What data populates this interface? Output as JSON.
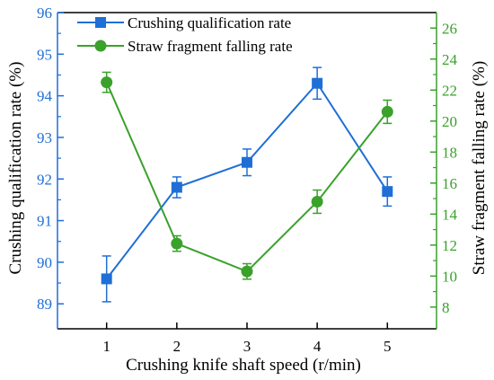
{
  "chart_data": {
    "type": "line",
    "xlabel": "Crushing knife shaft speed (r/min)",
    "ylabel_left": "Crushing qualification rate (%)",
    "ylabel_right": "Straw fragment falling rate (%)",
    "x": [
      1,
      2,
      3,
      4,
      5
    ],
    "x_ticks": [
      "1",
      "2",
      "3",
      "4",
      "5"
    ],
    "xlim": [
      0.3,
      5.7
    ],
    "ylim_left": [
      88.4,
      96
    ],
    "yticks_left": [
      "89",
      "90",
      "91",
      "92",
      "93",
      "94",
      "95",
      "96"
    ],
    "ylim_right": [
      6.6,
      27
    ],
    "yticks_right": [
      "8",
      "10",
      "12",
      "14",
      "16",
      "18",
      "20",
      "22",
      "24",
      "26"
    ],
    "legend_position": "top-left",
    "grid": false,
    "series": [
      {
        "name": "Crushing qualification rate",
        "axis": "left",
        "marker": "square",
        "color": "#1f6fd6",
        "values": [
          89.6,
          91.8,
          92.4,
          94.3,
          91.7
        ],
        "errors": [
          0.55,
          0.25,
          0.32,
          0.38,
          0.35
        ]
      },
      {
        "name": "Straw fragment falling rate",
        "axis": "right",
        "marker": "circle",
        "color": "#3aa12b",
        "values": [
          22.5,
          12.1,
          10.3,
          14.8,
          20.6
        ],
        "errors": [
          0.65,
          0.5,
          0.5,
          0.75,
          0.75
        ]
      }
    ]
  }
}
